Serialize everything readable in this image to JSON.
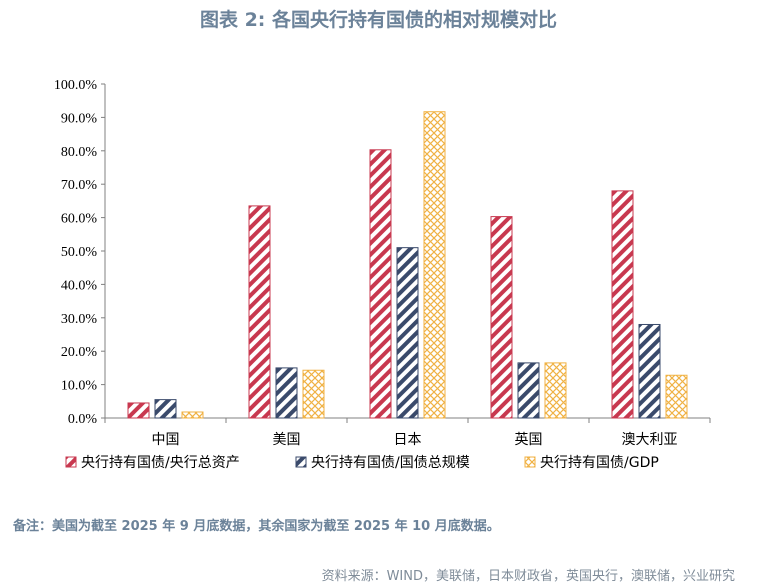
{
  "header": {
    "title": "图表 2:  各国央行持有国债的相对规模对比"
  },
  "chart_data": {
    "type": "bar",
    "title": "图表 2:  各国央行持有国债的相对规模对比",
    "categories": [
      "中国",
      "美国",
      "日本",
      "英国",
      "澳大利亚"
    ],
    "series": [
      {
        "name": "央行持有国债/央行总资产",
        "values": [
          4.5,
          63.5,
          80.3,
          60.3,
          68.0
        ],
        "color": "#c8384f",
        "pattern": "diagonal-stripes"
      },
      {
        "name": "央行持有国债/国债总规模",
        "values": [
          5.5,
          15.0,
          51.0,
          16.5,
          28.0
        ],
        "color": "#3a4a6b",
        "pattern": "diagonal-stripes"
      },
      {
        "name": "央行持有国债/GDP",
        "values": [
          1.8,
          14.3,
          91.7,
          16.5,
          12.8
        ],
        "color": "#f0b244",
        "pattern": "crosshatch"
      }
    ],
    "yticks": [
      "0.0%",
      "10.0%",
      "20.0%",
      "30.0%",
      "40.0%",
      "50.0%",
      "60.0%",
      "70.0%",
      "80.0%",
      "90.0%",
      "100.0%"
    ],
    "ylim": [
      0,
      100
    ],
    "xlabel": "",
    "ylabel": "",
    "grid": false,
    "legend_position": "bottom"
  },
  "footer": {
    "note": "备注：美国为截至 2025 年 9 月底数据，其余国家为截至 2025 年 10 月底数据。",
    "source": "资料来源：WIND，美联储，日本财政省，英国央行，澳联储，兴业研究"
  }
}
